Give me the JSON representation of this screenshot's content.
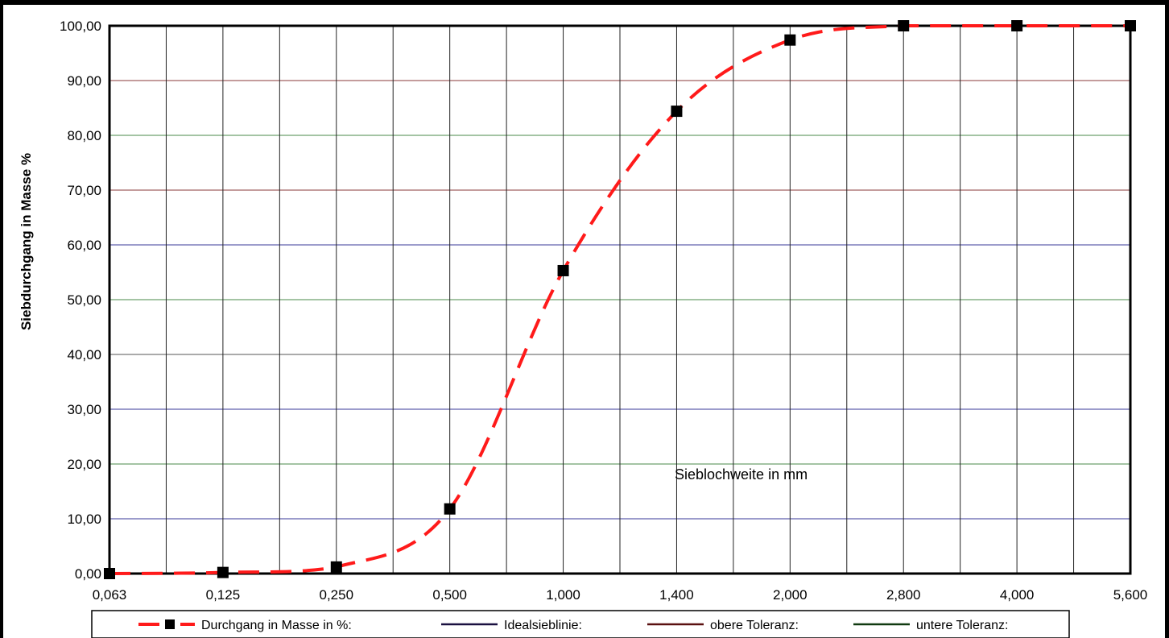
{
  "chart_data": {
    "type": "line",
    "title": "",
    "xlabel": "Sieblochweite in mm",
    "ylabel": "Siebdurchgang in Masse %",
    "x_categories": [
      "0,063",
      "0,125",
      "0,250",
      "0,500",
      "1,000",
      "1,400",
      "2,000",
      "2,800",
      "4,000",
      "5,600"
    ],
    "yticks": [
      "0,00",
      "10,00",
      "20,00",
      "30,00",
      "40,00",
      "50,00",
      "60,00",
      "70,00",
      "80,00",
      "90,00",
      "100,00"
    ],
    "ylim": [
      0,
      100
    ],
    "grid": true,
    "legend_position": "bottom",
    "series": [
      {
        "name": "Durchgang in Masse in %:",
        "color": "#ff1a1a",
        "marker": "square",
        "dashed": true,
        "values": [
          0.0,
          0.2,
          1.2,
          11.8,
          55.3,
          84.4,
          97.4,
          100.0,
          100.0,
          100.0
        ]
      },
      {
        "name": "Idealsieblinie:",
        "color": "#1a1040",
        "values": []
      },
      {
        "name": "obere Toleranz:",
        "color": "#5a1010",
        "values": []
      },
      {
        "name": "untere Toleranz:",
        "color": "#103a10",
        "values": []
      }
    ]
  }
}
